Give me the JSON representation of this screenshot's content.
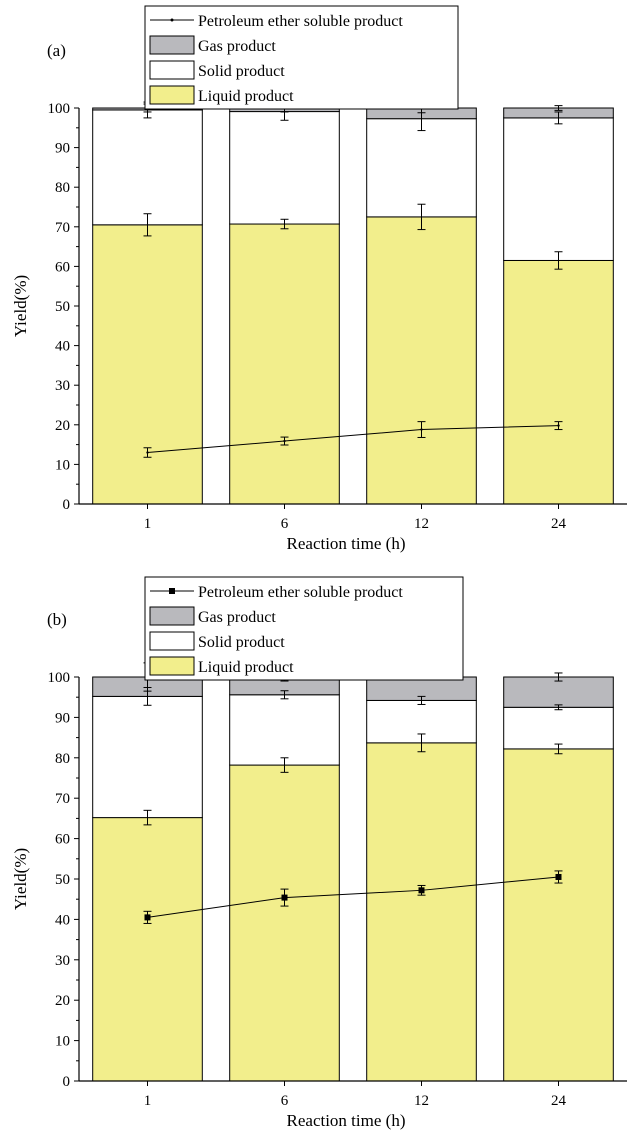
{
  "colors": {
    "liquid": "#f2ee8c",
    "solid": "#ffffff",
    "gas": "#b9b9bd",
    "line": "#000000",
    "frame": "#000000"
  },
  "chart_data": [
    {
      "type": "bar",
      "panel_label": "(a)",
      "stacked": true,
      "categories": [
        "1",
        "6",
        "12",
        "24"
      ],
      "xlabel": "Reaction time (h)",
      "ylabel": "Yield(%)",
      "ylim": [
        0,
        100
      ],
      "yticks": [
        "0",
        "10",
        "20",
        "30",
        "40",
        "50",
        "60",
        "70",
        "80",
        "90",
        "100"
      ],
      "legend_position": "top-left",
      "series": [
        {
          "name": "Liquid product",
          "kind": "bar",
          "values": [
            70.5,
            70.7,
            72.5,
            61.5
          ],
          "errors": [
            2.8,
            1.2,
            3.2,
            2.2
          ]
        },
        {
          "name": "Solid product",
          "kind": "bar",
          "values": [
            29.0,
            28.4,
            24.8,
            36.0
          ],
          "errors": [
            2.0,
            2.2,
            3.0,
            1.5
          ]
        },
        {
          "name": "Gas product",
          "kind": "bar",
          "values": [
            0.5,
            0.9,
            2.7,
            2.5
          ],
          "errors": [
            1.0,
            1.0,
            1.2,
            0.6
          ]
        },
        {
          "name": "Petroleum ether soluble product",
          "kind": "line",
          "marker": "none",
          "values": [
            13.0,
            15.9,
            18.8,
            19.8
          ],
          "errors": [
            1.2,
            1.0,
            2.0,
            1.0
          ]
        }
      ]
    },
    {
      "type": "bar",
      "panel_label": "(b)",
      "stacked": true,
      "categories": [
        "1",
        "6",
        "12",
        "24"
      ],
      "xlabel": "Reaction time (h)",
      "ylabel": "Yield(%)",
      "ylim": [
        0,
        100
      ],
      "yticks": [
        "0",
        "10",
        "20",
        "30",
        "40",
        "50",
        "60",
        "70",
        "80",
        "90",
        "100"
      ],
      "legend_position": "top-left",
      "series": [
        {
          "name": "Liquid product",
          "kind": "bar",
          "values": [
            65.2,
            78.2,
            83.7,
            82.2
          ],
          "errors": [
            1.8,
            1.8,
            2.2,
            1.2
          ]
        },
        {
          "name": "Solid product",
          "kind": "bar",
          "values": [
            30.0,
            17.4,
            10.5,
            10.3
          ],
          "errors": [
            2.2,
            1.0,
            1.0,
            0.6
          ]
        },
        {
          "name": "Gas product",
          "kind": "bar",
          "values": [
            4.8,
            4.4,
            5.8,
            7.5
          ],
          "errors": [
            3.5,
            1.0,
            0.3,
            1.0
          ]
        },
        {
          "name": "Petroleum ether soluble product",
          "kind": "line",
          "marker": "square",
          "values": [
            40.5,
            45.4,
            47.2,
            50.5
          ],
          "errors": [
            1.5,
            2.1,
            1.2,
            1.5
          ]
        }
      ]
    }
  ]
}
